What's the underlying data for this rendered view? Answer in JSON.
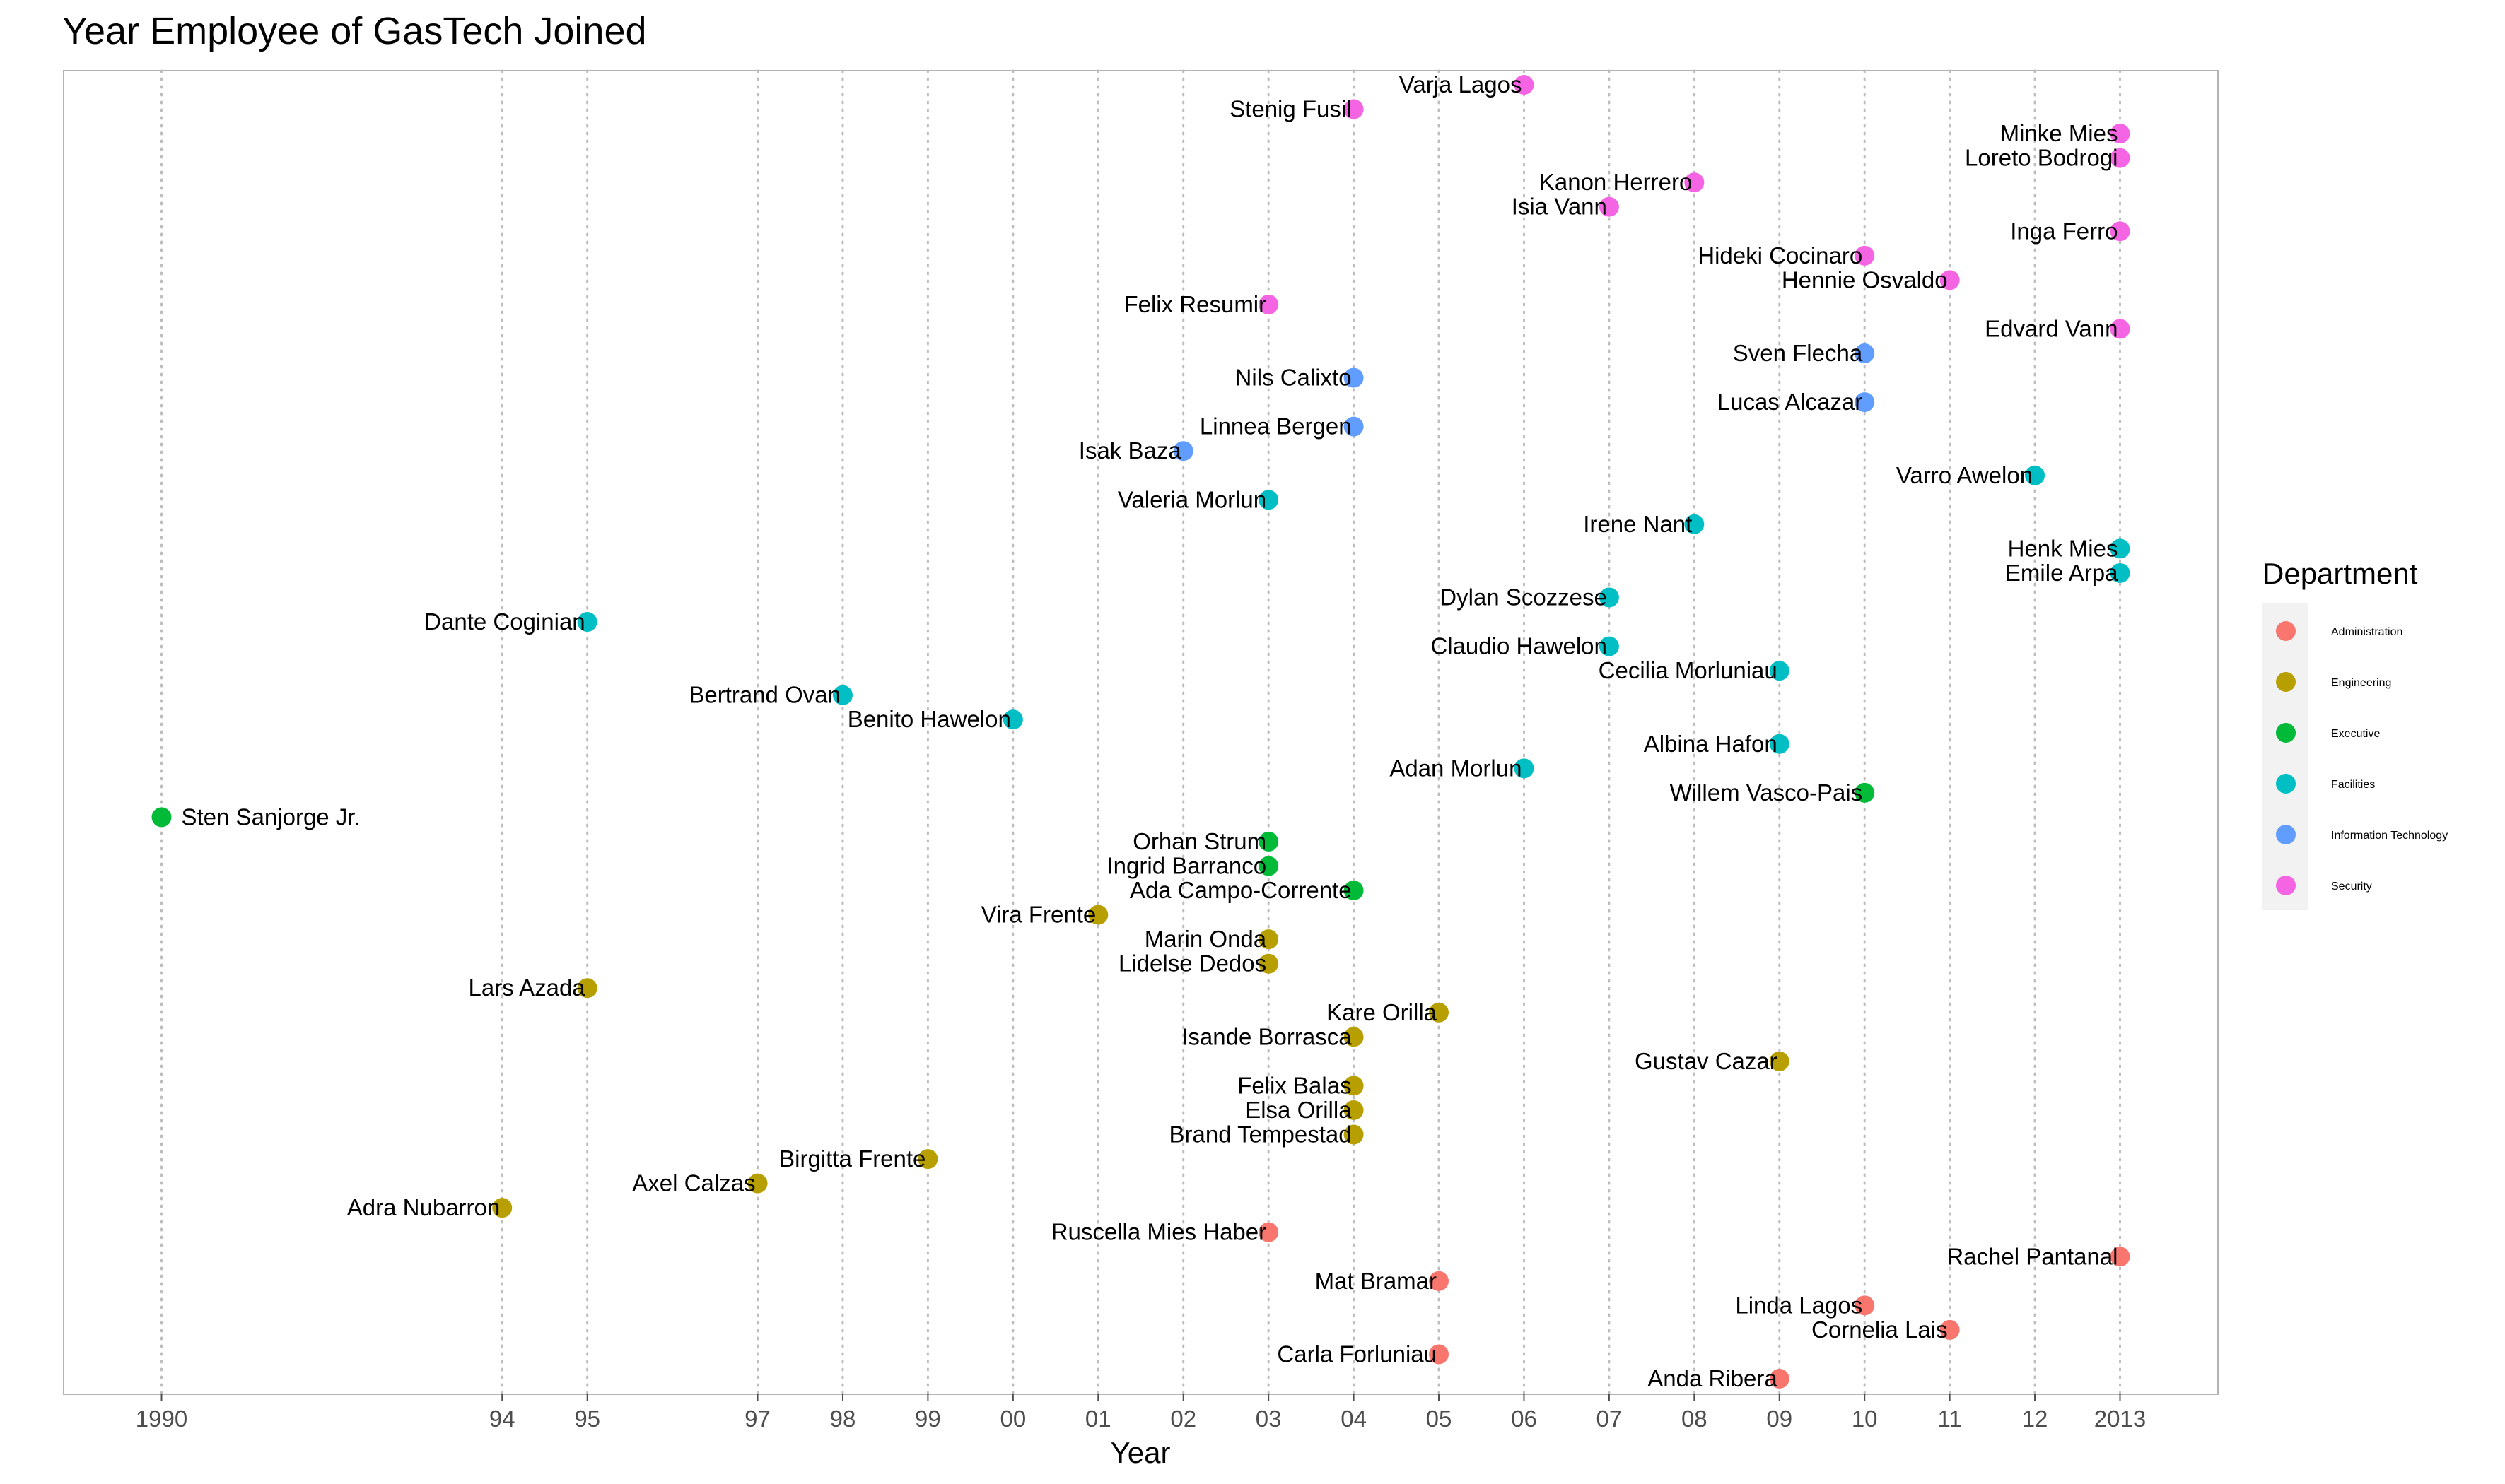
{
  "chart_data": {
    "type": "scatter",
    "title": "Year Employee of GasTech Joined",
    "xlabel": "Year",
    "ylabel": "",
    "xlim": [
      1988.85,
      2014.15
    ],
    "x_ticks": [
      {
        "value": 1990,
        "label": "1990"
      },
      {
        "value": 1994,
        "label": "94"
      },
      {
        "value": 1995,
        "label": "95"
      },
      {
        "value": 1997,
        "label": "97"
      },
      {
        "value": 1998,
        "label": "98"
      },
      {
        "value": 1999,
        "label": "99"
      },
      {
        "value": 2000,
        "label": "00"
      },
      {
        "value": 2001,
        "label": "01"
      },
      {
        "value": 2002,
        "label": "02"
      },
      {
        "value": 2003,
        "label": "03"
      },
      {
        "value": 2004,
        "label": "04"
      },
      {
        "value": 2005,
        "label": "05"
      },
      {
        "value": 2006,
        "label": "06"
      },
      {
        "value": 2007,
        "label": "07"
      },
      {
        "value": 2008,
        "label": "08"
      },
      {
        "value": 2009,
        "label": "09"
      },
      {
        "value": 2010,
        "label": "10"
      },
      {
        "value": 2011,
        "label": "11"
      },
      {
        "value": 2012,
        "label": "12"
      },
      {
        "value": 2013,
        "label": "2013"
      }
    ],
    "grid": "vertical dotted lines at tick years",
    "legend": {
      "title": "Department",
      "placement": "right",
      "entries": [
        {
          "name": "Administration",
          "color": "#F8766D"
        },
        {
          "name": "Engineering",
          "color": "#B79F00"
        },
        {
          "name": "Executive",
          "color": "#00BA38"
        },
        {
          "name": "Facilities",
          "color": "#00BFC4"
        },
        {
          "name": "Information Technology",
          "color": "#619CFF"
        },
        {
          "name": "Security",
          "color": "#F564E3"
        }
      ]
    },
    "points": [
      {
        "name": "Varja Lagos",
        "year": 2006,
        "dept": "Security"
      },
      {
        "name": "Stenig Fusil",
        "year": 2004,
        "dept": "Security"
      },
      {
        "name": "Minke Mies",
        "year": 2013,
        "dept": "Security"
      },
      {
        "name": "Loreto Bodrogi",
        "year": 2013,
        "dept": "Security"
      },
      {
        "name": "Kanon Herrero",
        "year": 2008,
        "dept": "Security"
      },
      {
        "name": "Isia Vann",
        "year": 2007,
        "dept": "Security"
      },
      {
        "name": "Inga Ferro",
        "year": 2013,
        "dept": "Security"
      },
      {
        "name": "Hideki Cocinaro",
        "year": 2010,
        "dept": "Security"
      },
      {
        "name": "Hennie Osvaldo",
        "year": 2011,
        "dept": "Security"
      },
      {
        "name": "Felix Resumir",
        "year": 2003,
        "dept": "Security"
      },
      {
        "name": "Edvard Vann",
        "year": 2013,
        "dept": "Security"
      },
      {
        "name": "Sven Flecha",
        "year": 2010,
        "dept": "Information Technology"
      },
      {
        "name": "Nils Calixto",
        "year": 2004,
        "dept": "Information Technology"
      },
      {
        "name": "Lucas Alcazar",
        "year": 2010,
        "dept": "Information Technology"
      },
      {
        "name": "Linnea Bergen",
        "year": 2004,
        "dept": "Information Technology"
      },
      {
        "name": "Isak Baza",
        "year": 2002,
        "dept": "Information Technology"
      },
      {
        "name": "Varro Awelon",
        "year": 2012,
        "dept": "Facilities"
      },
      {
        "name": "Valeria Morlun",
        "year": 2003,
        "dept": "Facilities"
      },
      {
        "name": "Irene Nant",
        "year": 2008,
        "dept": "Facilities"
      },
      {
        "name": "Henk Mies",
        "year": 2013,
        "dept": "Facilities"
      },
      {
        "name": "Emile Arpa",
        "year": 2013,
        "dept": "Facilities"
      },
      {
        "name": "Dylan Scozzese",
        "year": 2007,
        "dept": "Facilities"
      },
      {
        "name": "Dante Coginian",
        "year": 1995,
        "dept": "Facilities"
      },
      {
        "name": "Claudio Hawelon",
        "year": 2007,
        "dept": "Facilities"
      },
      {
        "name": "Cecilia Morluniau",
        "year": 2009,
        "dept": "Facilities"
      },
      {
        "name": "Bertrand Ovan",
        "year": 1998,
        "dept": "Facilities"
      },
      {
        "name": "Benito Hawelon",
        "year": 2000,
        "dept": "Facilities"
      },
      {
        "name": "Albina Hafon",
        "year": 2009,
        "dept": "Facilities"
      },
      {
        "name": "Adan Morlun",
        "year": 2006,
        "dept": "Facilities"
      },
      {
        "name": "Willem Vasco-Pais",
        "year": 2010,
        "dept": "Executive"
      },
      {
        "name": "Sten Sanjorge Jr.",
        "year": 1990,
        "dept": "Executive",
        "label_side": "right"
      },
      {
        "name": "Orhan Strum",
        "year": 2003,
        "dept": "Executive"
      },
      {
        "name": "Ingrid Barranco",
        "year": 2003,
        "dept": "Executive"
      },
      {
        "name": "Ada Campo-Corrente",
        "year": 2004,
        "dept": "Executive"
      },
      {
        "name": "Vira Frente",
        "year": 2001,
        "dept": "Engineering"
      },
      {
        "name": "Marin Onda",
        "year": 2003,
        "dept": "Engineering"
      },
      {
        "name": "Lidelse Dedos",
        "year": 2003,
        "dept": "Engineering"
      },
      {
        "name": "Lars Azada",
        "year": 1995,
        "dept": "Engineering"
      },
      {
        "name": "Kare Orilla",
        "year": 2005,
        "dept": "Engineering"
      },
      {
        "name": "Isande Borrasca",
        "year": 2004,
        "dept": "Engineering"
      },
      {
        "name": "Gustav Cazar",
        "year": 2009,
        "dept": "Engineering"
      },
      {
        "name": "Felix Balas",
        "year": 2004,
        "dept": "Engineering"
      },
      {
        "name": "Elsa Orilla",
        "year": 2004,
        "dept": "Engineering"
      },
      {
        "name": "Brand Tempestad",
        "year": 2004,
        "dept": "Engineering"
      },
      {
        "name": "Birgitta Frente",
        "year": 1999,
        "dept": "Engineering"
      },
      {
        "name": "Axel Calzas",
        "year": 1997,
        "dept": "Engineering"
      },
      {
        "name": "Adra Nubarron",
        "year": 1994,
        "dept": "Engineering"
      },
      {
        "name": "Ruscella Mies Haber",
        "year": 2003,
        "dept": "Administration"
      },
      {
        "name": "Rachel Pantanal",
        "year": 2013,
        "dept": "Administration"
      },
      {
        "name": "Mat Bramar",
        "year": 2005,
        "dept": "Administration"
      },
      {
        "name": "Linda Lagos",
        "year": 2010,
        "dept": "Administration"
      },
      {
        "name": "Cornelia Lais",
        "year": 2011,
        "dept": "Administration"
      },
      {
        "name": "Carla Forluniau",
        "year": 2005,
        "dept": "Administration"
      },
      {
        "name": "Anda Ribera",
        "year": 2009,
        "dept": "Administration"
      }
    ]
  }
}
